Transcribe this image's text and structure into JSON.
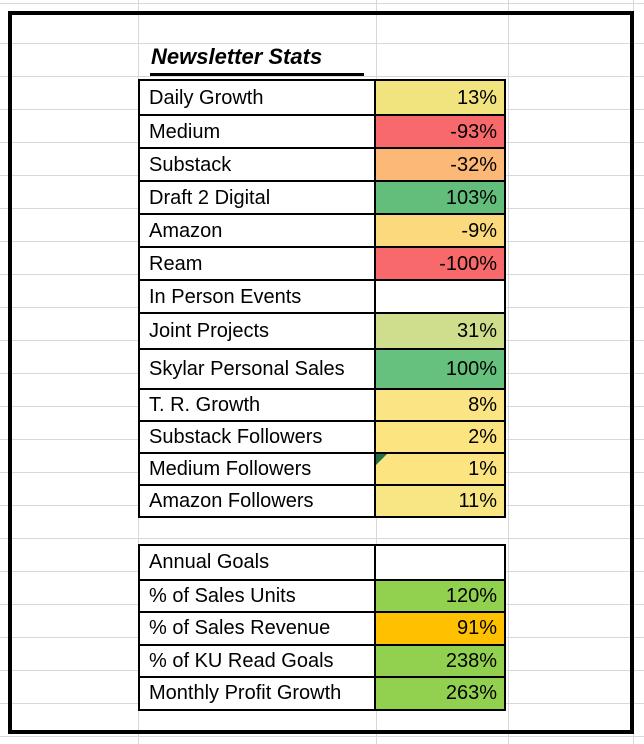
{
  "sheet": {
    "title": "Newsletter Stats"
  },
  "colors": {
    "grid": "#D8D8D8",
    "border": "#000000",
    "comment_flag": "#1E7145",
    "scale_red": "#F8696B",
    "scale_yellow": "#FCE480",
    "scale_green": "#63BE7B",
    "goal_green": "#92D050",
    "goal_amber": "#FFC000"
  },
  "tables": {
    "newsletter": {
      "rows": [
        {
          "label": "Daily Growth",
          "value": "13%",
          "color": "#F1E47F"
        },
        {
          "label": "Medium",
          "value": "-93%",
          "color": "#F8696B"
        },
        {
          "label": "Substack",
          "value": "-32%",
          "color": "#FBB877"
        },
        {
          "label": "Draft 2 Digital",
          "value": "103%",
          "color": "#63BE7B"
        },
        {
          "label": "Amazon",
          "value": "-9%",
          "color": "#FDD97E"
        },
        {
          "label": "Ream",
          "value": "-100%",
          "color": "#F8696B"
        },
        {
          "label": "In Person Events",
          "value": "",
          "color": ""
        },
        {
          "label": "Joint Projects",
          "value": "31%",
          "color": "#CEDE8C"
        },
        {
          "label": "Skylar Personal Sales",
          "value": "100%",
          "color": "#66C07E"
        },
        {
          "label": "T. R. Growth",
          "value": "8%",
          "color": "#FAE483"
        },
        {
          "label": "Substack Followers",
          "value": "2%",
          "color": "#FCE480"
        },
        {
          "label": "Medium Followers",
          "value": "1%",
          "color": "#FCE480",
          "flag": true
        },
        {
          "label": "Amazon Followers",
          "value": "11%",
          "color": "#F8E583"
        }
      ]
    },
    "annual": {
      "rows": [
        {
          "label": "Annual Goals",
          "value": "",
          "color": ""
        },
        {
          "label": "% of Sales Units",
          "value": "120%",
          "color": "#92D050"
        },
        {
          "label": "% of Sales Revenue",
          "value": "91%",
          "color": "#FFC000"
        },
        {
          "label": "% of KU Read Goals",
          "value": "238%",
          "color": "#92D050"
        },
        {
          "label": "Monthly Profit Growth",
          "value": "263%",
          "color": "#92D050"
        }
      ]
    }
  }
}
